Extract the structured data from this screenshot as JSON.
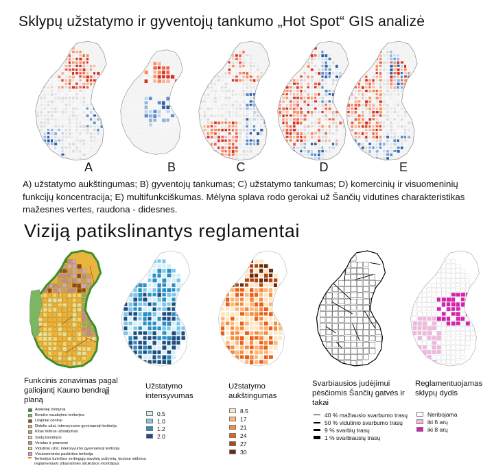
{
  "hotspot": {
    "title": "Sklypų užstatymo ir gyventojų tankumo „Hot Spot“ GIS analizė",
    "maps": [
      {
        "letter": "A"
      },
      {
        "letter": "B"
      },
      {
        "letter": "C"
      },
      {
        "letter": "D"
      },
      {
        "letter": "E"
      }
    ],
    "caption": "A) užstatymo aukštingumas;  B) gyventojų tankumas; C) užstatymo tankumas; D) komercinių ir visuomeninių funkcijų koncentracija; E) multifunkciškumas. Mėlyna splava rodo gerokai už Šančių vidutines charakteristikas mažesnes vertes, raudona - didesnes.",
    "colors": {
      "low": "#3f6fb3",
      "high": "#d7301f"
    }
  },
  "regulations": {
    "title": "Viziją patikslinantys reglamentai",
    "zoning": {
      "title": "Funkcinis zonavimas pagal galiojantį Kauno bendrąjį planą",
      "items": [
        {
          "label": "Atskirieji želdynai",
          "color": "#3d8f2e"
        },
        {
          "label": "Bendro naudojimo teritorijos",
          "color": "#7bb661"
        },
        {
          "label": "Linijiniai centrai",
          "color": "#8c4a1e"
        },
        {
          "label": "Didelio užst. intensyvumo gyvenamoji teritorija",
          "color": "#e9b53c"
        },
        {
          "label": "Kitas mišrus užstatymas",
          "color": "#bfa46a"
        },
        {
          "label": "Sodų bendrijos",
          "color": "#dfe49a"
        },
        {
          "label": "Verslas ir pramonė",
          "color": "#b98e9a"
        },
        {
          "label": "Vidutinio užst. intensyvumo gyvenamoji teritorija",
          "color": "#f4d36a"
        },
        {
          "label": "Visuomeninės paskirties teritorija",
          "color": "#c9a7c4"
        },
        {
          "label": "Teritorijos turinčios vertingųjų savybių požymių, kuriose siūloma reglamentuoti urbanistinės struktūros morfotipus",
          "color": "#f07a3a"
        }
      ]
    },
    "intensity": {
      "title": "Užstatymo intensyvumas",
      "items": [
        {
          "label": "0.5",
          "color": "#d6eef8"
        },
        {
          "label": "1.0",
          "color": "#7cc7e8"
        },
        {
          "label": "1.2",
          "color": "#2a8fc4"
        },
        {
          "label": "2.0",
          "color": "#1d4e7e"
        }
      ]
    },
    "height": {
      "title": "Užstatymo aukštingumas",
      "items": [
        {
          "label": "8.5",
          "color": "#fde7c3"
        },
        {
          "label": "17",
          "color": "#fbb77a"
        },
        {
          "label": "21",
          "color": "#f68b3b"
        },
        {
          "label": "24",
          "color": "#e8601c"
        },
        {
          "label": "27",
          "color": "#b8420f"
        },
        {
          "label": "30",
          "color": "#6b2a0a"
        }
      ]
    },
    "pedestrian": {
      "title": "Svarbiausios judėjimui pėsčiomis Šančių gatvės ir takai",
      "items": [
        {
          "label": "40 % mažiausio svarbumo trasų",
          "weight": 1
        },
        {
          "label": "50 % vidutinio svarbumo trasų",
          "weight": 2
        },
        {
          "label": "9 % svarbių trasų",
          "weight": 3
        },
        {
          "label": "1 % svarbiausių trasų",
          "weight": 5
        }
      ]
    },
    "plots": {
      "title": "Reglamentuojamas sklypų dydis",
      "items": [
        {
          "label": "Neribojama",
          "color": "#ffffff"
        },
        {
          "label": "iki 6 arų",
          "color": "#f4b6e0"
        },
        {
          "label": "iki 8 arų",
          "color": "#d81fb0"
        }
      ]
    }
  }
}
